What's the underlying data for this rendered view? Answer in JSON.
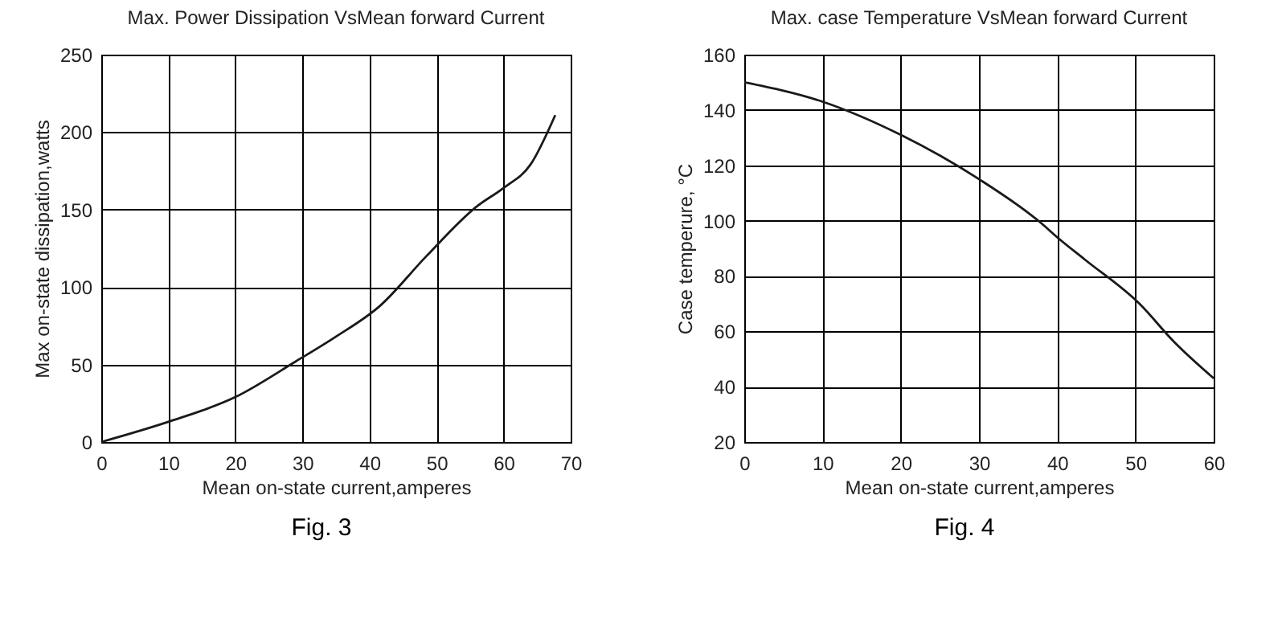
{
  "chart_data": [
    {
      "type": "line",
      "title": "Max. Power  Dissipation  VsMean forward  Current",
      "xlabel": "Mean on-state current,amperes",
      "ylabel": "Max on-state dissipation,watts",
      "x": [
        0,
        10,
        20,
        29,
        35,
        41.6,
        48.5,
        56,
        60,
        64,
        67.7
      ],
      "values": [
        0,
        13,
        29,
        52,
        68,
        88,
        120,
        152,
        164,
        179,
        211
      ],
      "color": "#1a1a1a",
      "xlim": [
        0,
        70
      ],
      "ylim": [
        0,
        250
      ],
      "xticks": [
        0,
        10,
        20,
        30,
        40,
        50,
        60,
        70
      ],
      "yticks": [
        0,
        50,
        100,
        150,
        200,
        250
      ],
      "grid": true,
      "annotations": [
        "Fig. 3"
      ]
    },
    {
      "type": "line",
      "title": "Max. case  Temperature  VsMean forward  Current",
      "xlabel": "Mean on-state current,amperes",
      "ylabel": "Case temperure, °C",
      "x": [
        0,
        10,
        20,
        30,
        38,
        40,
        43.5,
        50.5,
        55,
        60
      ],
      "values": [
        150,
        143,
        131,
        115,
        99,
        94,
        86,
        70,
        56,
        43
      ],
      "color": "#1a1a1a",
      "xlim": [
        0,
        60
      ],
      "ylim": [
        20,
        160
      ],
      "xticks": [
        0,
        10,
        20,
        30,
        40,
        50,
        60
      ],
      "yticks": [
        20,
        40,
        60,
        80,
        100,
        120,
        140,
        160
      ],
      "grid": true,
      "annotations": [
        "Fig. 4"
      ]
    }
  ]
}
